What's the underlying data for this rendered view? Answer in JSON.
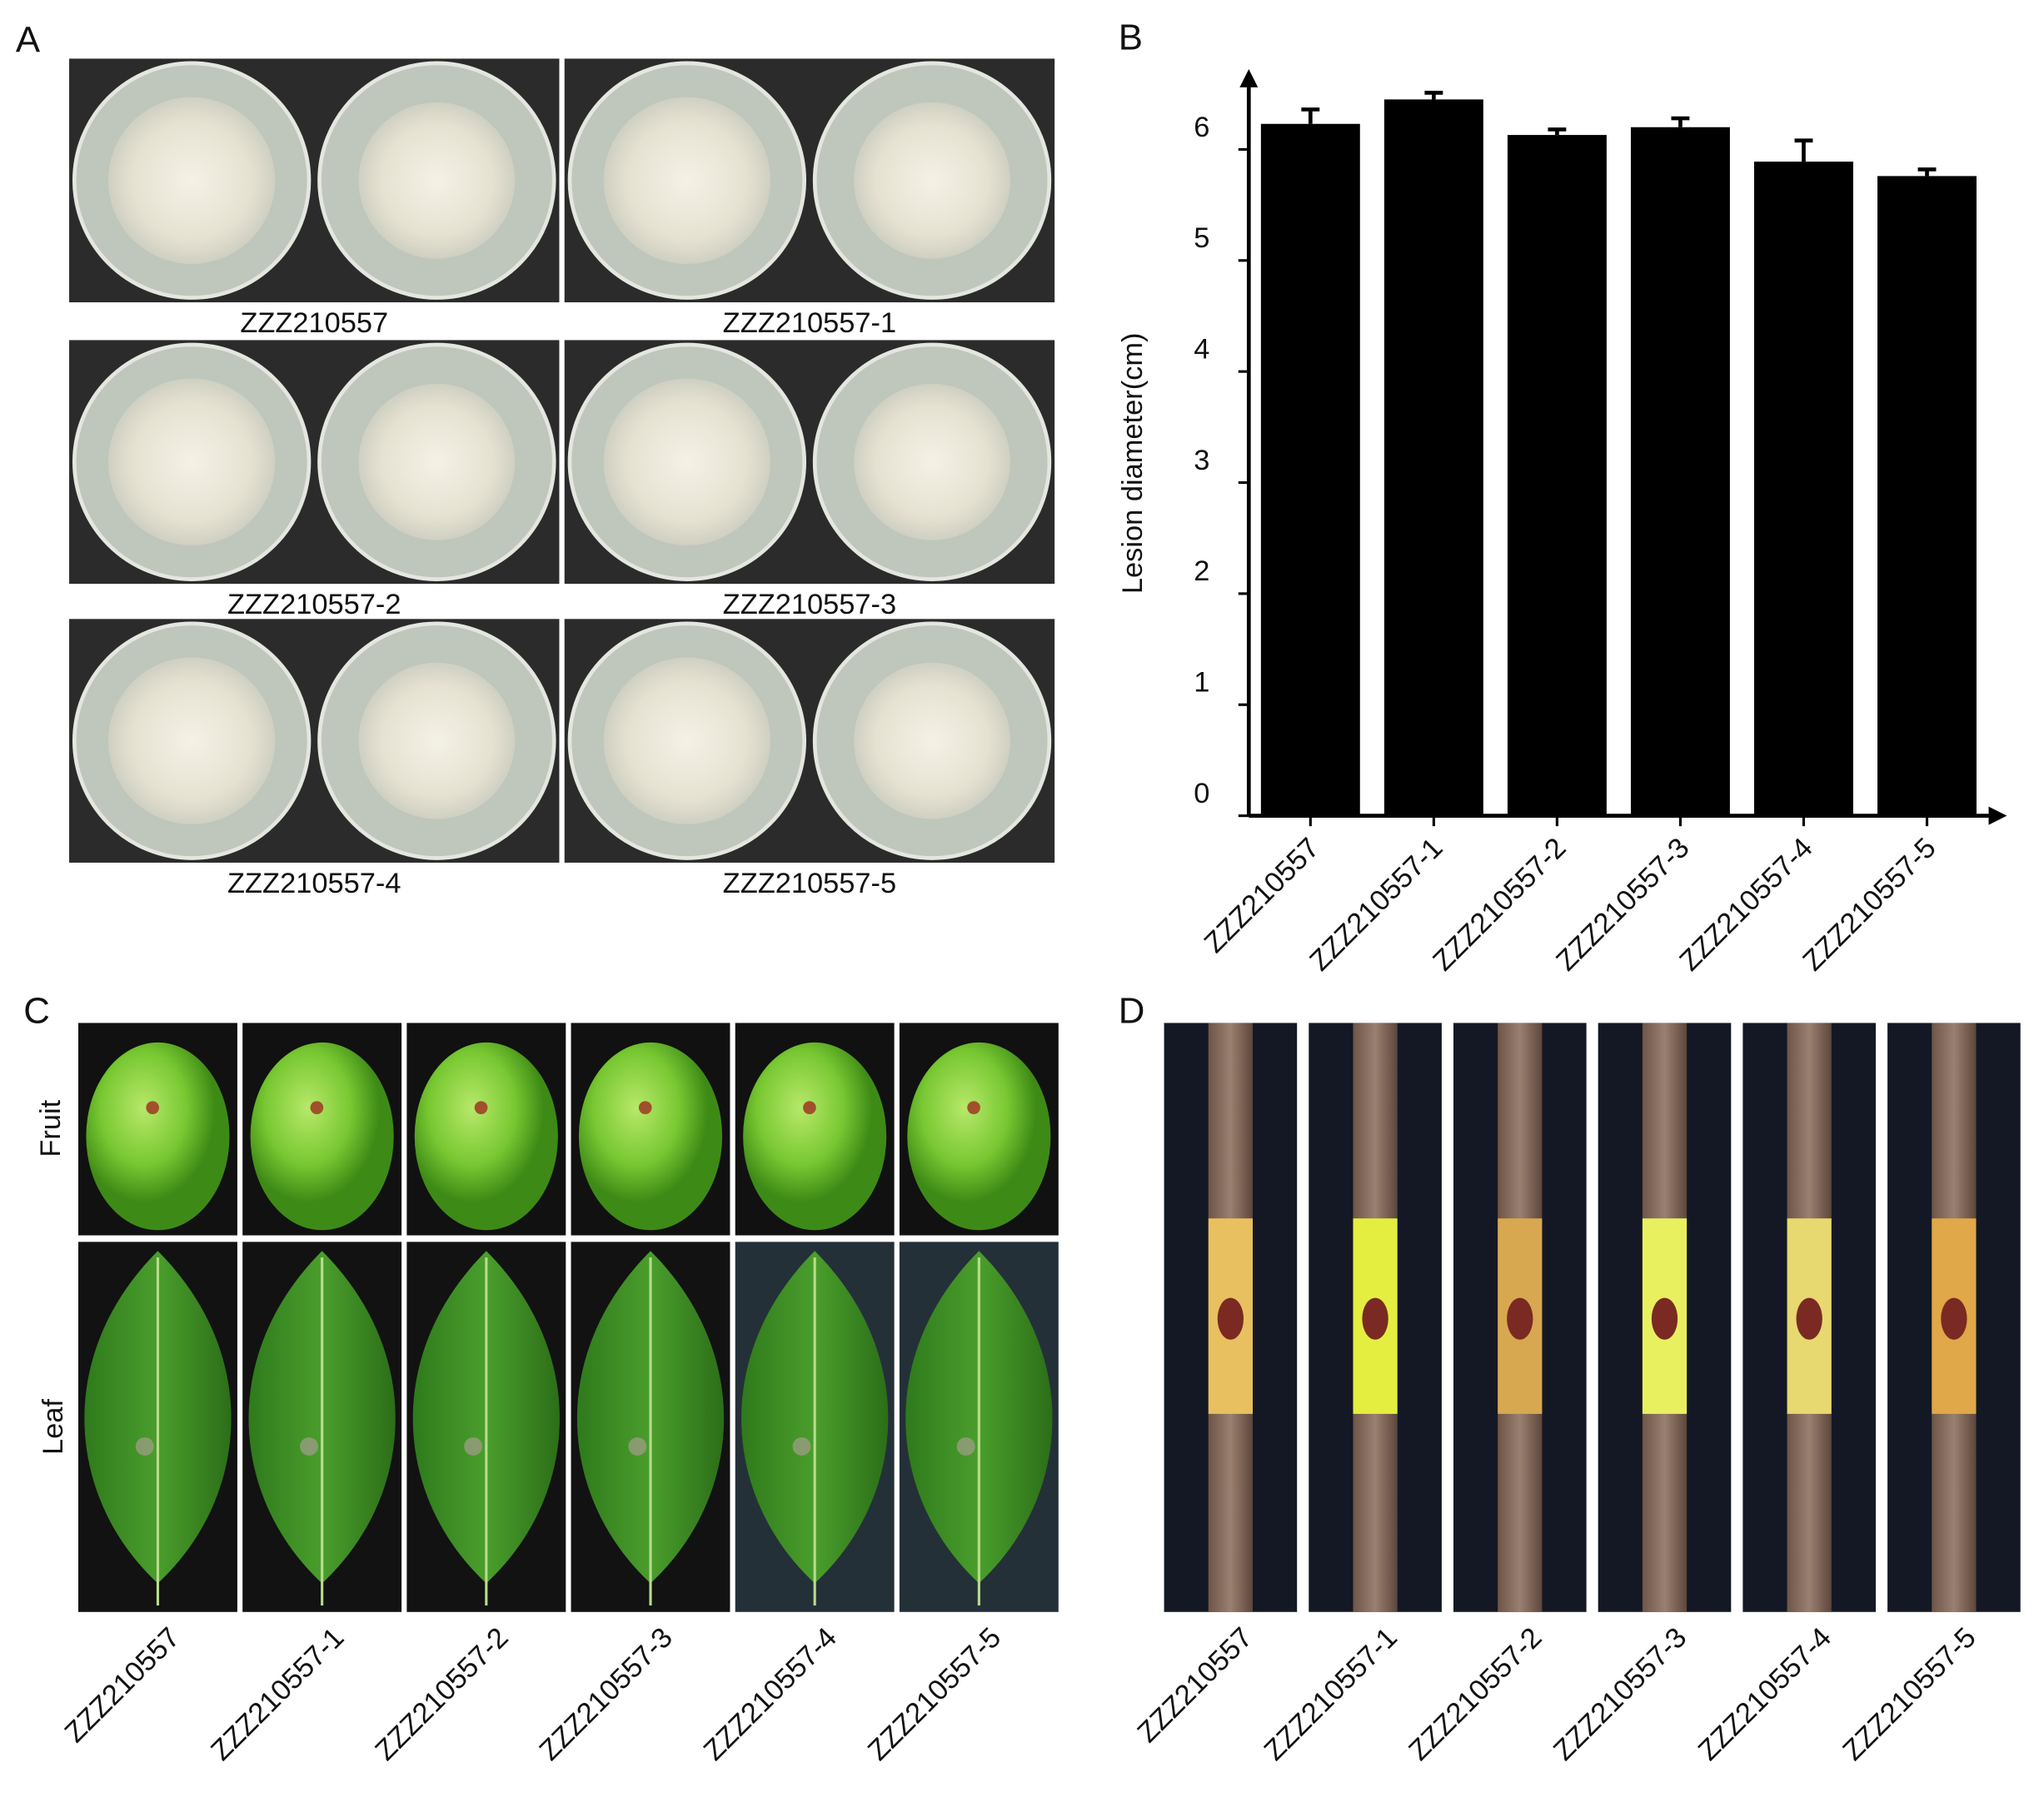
{
  "panel_labels": [
    "A",
    "B",
    "C",
    "D"
  ],
  "panel_a": {
    "captions": [
      "ZZZ210557",
      "ZZZ210557-1",
      "ZZZ210557-2",
      "ZZZ210557-3",
      "ZZZ210557-4",
      "ZZZ210557-5"
    ]
  },
  "chart_data": {
    "type": "bar",
    "y_label": "Lesion diameter(cm)",
    "categories": [
      "ZZZ210557",
      "ZZZ210557-1",
      "ZZZ210557-2",
      "ZZZ210557-3",
      "ZZZ210557-4",
      "ZZZ210557-5"
    ],
    "series": [
      {
        "color": "#000000",
        "values": [
          6.23,
          6.45,
          6.13,
          6.2,
          5.89,
          5.76
        ],
        "errors": [
          0.13,
          0.06,
          0.05,
          0.08,
          0.19,
          0.06
        ]
      }
    ],
    "ylim": [
      0,
      6.7
    ],
    "yticks": [
      0,
      1,
      2,
      3,
      4,
      5,
      6
    ]
  },
  "panel_c": {
    "row_labels": [
      "Fruit",
      "Leaf"
    ],
    "column_labels": [
      "ZZZ210557",
      "ZZZ210557-1",
      "ZZZ210557-2",
      "ZZZ210557-3",
      "ZZZ210557-4",
      "ZZZ210557-5"
    ]
  },
  "panel_d": {
    "column_labels": [
      "ZZZ210557",
      "ZZZ210557-1",
      "ZZZ210557-2",
      "ZZZ210557-3",
      "ZZZ210557-4",
      "ZZZ210557-5"
    ]
  }
}
